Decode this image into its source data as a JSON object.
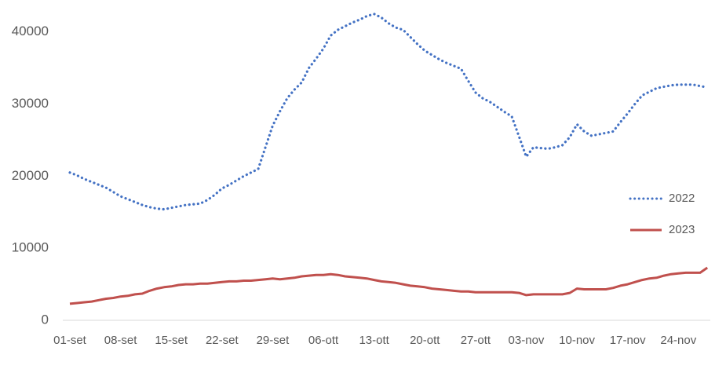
{
  "chart_data": {
    "type": "line",
    "categories": [
      "01-set",
      null,
      null,
      null,
      null,
      null,
      null,
      "08-set",
      null,
      null,
      null,
      null,
      null,
      null,
      "15-set",
      null,
      null,
      null,
      null,
      null,
      null,
      "22-set",
      null,
      null,
      null,
      null,
      null,
      null,
      "29-set",
      null,
      null,
      null,
      null,
      null,
      null,
      "06-ott",
      null,
      null,
      null,
      null,
      null,
      null,
      "13-ott",
      null,
      null,
      null,
      null,
      null,
      null,
      "20-ott",
      null,
      null,
      null,
      null,
      null,
      null,
      "27-ott",
      null,
      null,
      null,
      null,
      null,
      null,
      "03-nov",
      null,
      null,
      null,
      null,
      null,
      null,
      "10-nov",
      null,
      null,
      null,
      null,
      null,
      null,
      "17-nov",
      null,
      null,
      null,
      null,
      null,
      null,
      "24-nov",
      null,
      null,
      null,
      null
    ],
    "series": [
      {
        "name": "2022",
        "color": "#4472c4",
        "dashed": true,
        "values": [
          20500,
          20100,
          19600,
          19200,
          18800,
          18400,
          17800,
          17200,
          16800,
          16400,
          16000,
          15700,
          15500,
          15400,
          15600,
          15800,
          16000,
          16100,
          16200,
          16700,
          17400,
          18300,
          18800,
          19400,
          20000,
          20500,
          21000,
          24000,
          27000,
          29000,
          30800,
          32000,
          33000,
          35000,
          36300,
          37700,
          39500,
          40300,
          40800,
          41300,
          41700,
          42200,
          42500,
          42000,
          41200,
          40600,
          40300,
          39300,
          38300,
          37400,
          36800,
          36200,
          35700,
          35300,
          34900,
          33200,
          31600,
          30800,
          30300,
          29600,
          28900,
          28300,
          25500,
          22700,
          24000,
          23900,
          23800,
          24000,
          24300,
          25400,
          27200,
          26200,
          25600,
          25800,
          26000,
          26200,
          27500,
          28700,
          30000,
          31200,
          31700,
          32200,
          32400,
          32600,
          32700,
          32700,
          32700,
          32500,
          32300
        ]
      },
      {
        "name": "2023",
        "color": "#c0504d",
        "dashed": false,
        "values": [
          2300,
          2400,
          2500,
          2600,
          2800,
          3000,
          3100,
          3300,
          3400,
          3600,
          3700,
          4100,
          4400,
          4600,
          4700,
          4900,
          5000,
          5000,
          5100,
          5100,
          5200,
          5300,
          5400,
          5400,
          5500,
          5500,
          5600,
          5700,
          5800,
          5700,
          5800,
          5900,
          6100,
          6200,
          6300,
          6300,
          6400,
          6300,
          6100,
          6000,
          5900,
          5800,
          5600,
          5400,
          5300,
          5200,
          5000,
          4800,
          4700,
          4600,
          4400,
          4300,
          4200,
          4100,
          4000,
          4000,
          3900,
          3900,
          3900,
          3900,
          3900,
          3900,
          3800,
          3500,
          3600,
          3600,
          3600,
          3600,
          3600,
          3800,
          4400,
          4300,
          4300,
          4300,
          4300,
          4500,
          4800,
          5000,
          5300,
          5600,
          5800,
          5900,
          6200,
          6400,
          6500,
          6600,
          6600,
          6600,
          7300
        ]
      }
    ],
    "ylim": [
      0,
      44000
    ],
    "yticks": [
      0,
      10000,
      20000,
      30000,
      40000
    ],
    "grid": false,
    "legend": "right"
  }
}
